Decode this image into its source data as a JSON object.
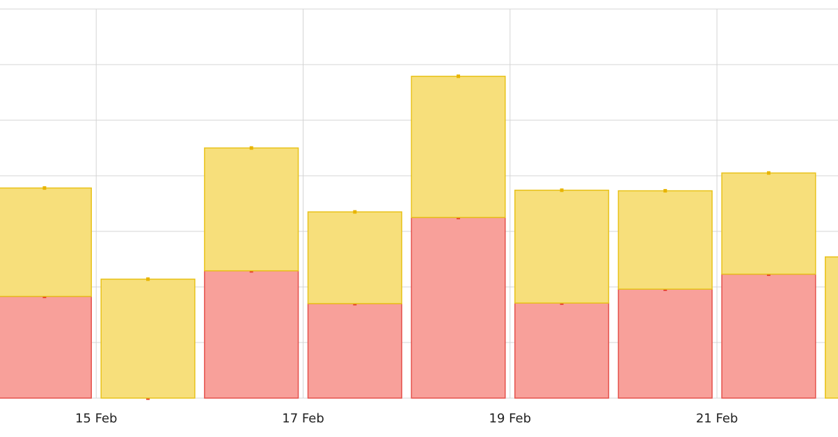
{
  "chart_data": {
    "type": "stacked-bar",
    "x": [
      14,
      15,
      16,
      17,
      18,
      19,
      20,
      21,
      22
    ],
    "xlim": [
      14.07,
      22.17
    ],
    "xticks": [
      {
        "value": 15,
        "label": "15 Feb"
      },
      {
        "value": 17,
        "label": "17 Feb"
      },
      {
        "value": 19,
        "label": "19 Feb"
      },
      {
        "value": 21,
        "label": "21 Feb"
      }
    ],
    "ylim": [
      0,
      7
    ],
    "yticks": [
      0,
      1,
      2,
      3,
      4,
      5,
      6,
      7
    ],
    "grid": true,
    "series": [
      {
        "color": "#f8a09a",
        "values": [
          1.83,
          0,
          2.29,
          1.7,
          3.25,
          1.71,
          1.96,
          2.23,
          0
        ]
      },
      {
        "color": "#f7df7b",
        "values": [
          1.95,
          2.14,
          2.21,
          1.65,
          2.54,
          2.03,
          1.77,
          1.82,
          2.54
        ]
      }
    ]
  }
}
